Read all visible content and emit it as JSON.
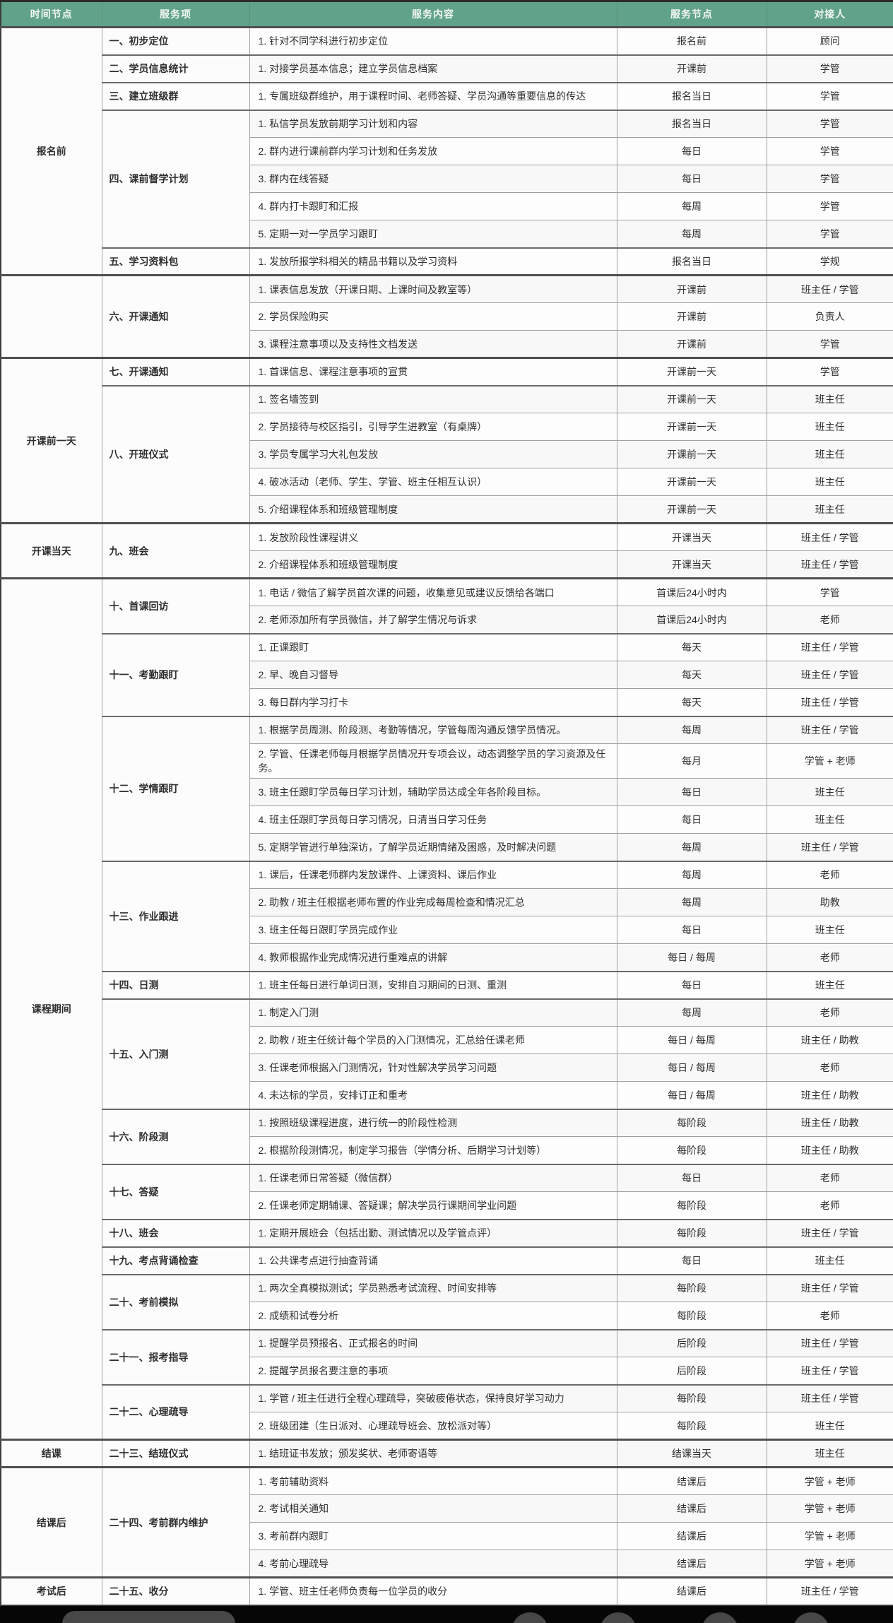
{
  "colors": {
    "header_bg": "#61a389",
    "header_text": "#f4f8f4",
    "bottom_bar_bg": "#060606",
    "bottom_bar_shape": "#474747"
  },
  "header": {
    "columns": [
      "时间节点",
      "服务项",
      "服务内容",
      "服务节点",
      "对接人"
    ]
  },
  "sections": [
    {
      "time_node": "报名前",
      "items": [
        {
          "label": "一、初步定位",
          "rows": [
            [
              "1. 针对不同学科进行初步定位",
              "报名前",
              "顾问"
            ]
          ]
        },
        {
          "label": "二、学员信息统计",
          "rows": [
            [
              "1. 对接学员基本信息；建立学员信息档案",
              "开课前",
              "学管"
            ]
          ]
        },
        {
          "label": "三、建立班级群",
          "rows": [
            [
              "1. 专属班级群维护，用于课程时间、老师答疑、学员沟通等重要信息的传达",
              "报名当日",
              "学管"
            ]
          ]
        },
        {
          "label": "四、课前督学计划",
          "rows": [
            [
              "1. 私信学员发放前期学习计划和内容",
              "报名当日",
              "学管"
            ],
            [
              "2. 群内进行课前群内学习计划和任务发放",
              "每日",
              "学管"
            ],
            [
              "3. 群内在线答疑",
              "每日",
              "学管"
            ],
            [
              "4. 群内打卡跟盯和汇报",
              "每周",
              "学管"
            ],
            [
              "5. 定期一对一学员学习跟盯",
              "每周",
              "学管"
            ]
          ]
        },
        {
          "label": "五、学习资料包",
          "rows": [
            [
              "1. 发放所报学科相关的精品书籍以及学习资料",
              "报名当日",
              "学规"
            ]
          ]
        }
      ]
    },
    {
      "time_node": "",
      "items": [
        {
          "label": "六、开课通知",
          "rows": [
            [
              "1. 课表信息发放（开课日期、上课时间及教室等）",
              "开课前",
              "班主任 / 学管"
            ],
            [
              "2. 学员保险购买",
              "开课前",
              "负责人"
            ],
            [
              "3. 课程注意事项以及支持性文档发送",
              "开课前",
              "学管"
            ]
          ]
        }
      ]
    },
    {
      "time_node": "开课前一天",
      "items": [
        {
          "label": "七、开课通知",
          "rows": [
            [
              "1. 首课信息、课程注意事项的宣贯",
              "开课前一天",
              "学管"
            ]
          ]
        },
        {
          "label": "八、开班仪式",
          "rows": [
            [
              "1. 签名墙签到",
              "开课前一天",
              "班主任"
            ],
            [
              "2. 学员接待与校区指引，引导学生进教室（有桌牌）",
              "开课前一天",
              "班主任"
            ],
            [
              "3. 学员专属学习大礼包发放",
              "开课前一天",
              "班主任"
            ],
            [
              "4. 破冰活动（老师、学生、学管、班主任相互认识）",
              "开课前一天",
              "班主任"
            ],
            [
              "5. 介绍课程体系和班级管理制度",
              "开课前一天",
              "班主任"
            ]
          ]
        }
      ]
    },
    {
      "time_node": "开课当天",
      "items": [
        {
          "label": "九、班会",
          "rows": [
            [
              "1. 发放阶段性课程讲义",
              "开课当天",
              "班主任 / 学管"
            ],
            [
              "2. 介绍课程体系和班级管理制度",
              "开课当天",
              "班主任 / 学管"
            ]
          ]
        }
      ]
    },
    {
      "time_node": "课程期间",
      "items": [
        {
          "label": "十、首课回访",
          "rows": [
            [
              "1. 电话 / 微信了解学员首次课的问题，收集意见或建议反馈给各端口",
              "首课后24小时内",
              "学管"
            ],
            [
              "2. 老师添加所有学员微信，并了解学生情况与诉求",
              "首课后24小时内",
              "老师"
            ]
          ]
        },
        {
          "label": "十一、考勤跟盯",
          "rows": [
            [
              "1. 正课跟盯",
              "每天",
              "班主任 / 学管"
            ],
            [
              "2. 早、晚自习督导",
              "每天",
              "班主任 / 学管"
            ],
            [
              "3. 每日群内学习打卡",
              "每天",
              "班主任 / 学管"
            ]
          ]
        },
        {
          "label": "十二、学情跟盯",
          "rows": [
            [
              "1. 根据学员周测、阶段测、考勤等情况，学管每周沟通反馈学员情况。",
              "每周",
              "班主任 / 学管"
            ],
            [
              "2. 学管、任课老师每月根据学员情况开专项会议，动态调整学员的学习资源及任务。",
              "每月",
              "学管 + 老师"
            ],
            [
              "3. 班主任跟盯学员每日学习计划，辅助学员达成全年各阶段目标。",
              "每日",
              "班主任"
            ],
            [
              "4. 班主任跟盯学员每日学习情况，日清当日学习任务",
              "每日",
              "班主任"
            ],
            [
              "5. 定期学管进行单独深访，了解学员近期情绪及困惑，及时解决问题",
              "每周",
              "班主任 / 学管"
            ]
          ]
        },
        {
          "label": "十三、作业跟进",
          "rows": [
            [
              "1. 课后，任课老师群内发放课件、上课资料、课后作业",
              "每周",
              "老师"
            ],
            [
              "2. 助教 / 班主任根据老师布置的作业完成每周检查和情况汇总",
              "每周",
              "助教"
            ],
            [
              "3. 班主任每日跟盯学员完成作业",
              "每日",
              "班主任"
            ],
            [
              "4. 教师根据作业完成情况进行重难点的讲解",
              "每日 / 每周",
              "老师"
            ]
          ]
        },
        {
          "label": "十四、日测",
          "rows": [
            [
              "1. 班主任每日进行单词日测，安排自习期间的日测、重测",
              "每日",
              "班主任"
            ]
          ]
        },
        {
          "label": "十五、入门测",
          "rows": [
            [
              "1. 制定入门测",
              "每周",
              "老师"
            ],
            [
              "2. 助教 / 班主任统计每个学员的入门测情况，汇总给任课老师",
              "每日 / 每周",
              "班主任 / 助教"
            ],
            [
              "3. 任课老师根据入门测情况，针对性解决学员学习问题",
              "每日 / 每周",
              "老师"
            ],
            [
              "4. 未达标的学员，安排订正和重考",
              "每日 / 每周",
              "班主任 / 助教"
            ]
          ]
        },
        {
          "label": "十六、阶段测",
          "rows": [
            [
              "1. 按照班级课程进度，进行统一的阶段性检测",
              "每阶段",
              "班主任 / 助教"
            ],
            [
              "2. 根据阶段测情况，制定学习报告（学情分析、后期学习计划等）",
              "每阶段",
              "班主任 / 助教"
            ]
          ]
        },
        {
          "label": "十七、答疑",
          "rows": [
            [
              "1. 任课老师日常答疑（微信群）",
              "每日",
              "老师"
            ],
            [
              "2. 任课老师定期辅课、答疑课；解决学员行课期间学业问题",
              "每阶段",
              "老师"
            ]
          ]
        },
        {
          "label": "十八、班会",
          "rows": [
            [
              "1. 定期开展班会（包括出勤、测试情况以及学管点评）",
              "每阶段",
              "班主任 / 学管"
            ]
          ]
        },
        {
          "label": "十九、考点背诵检查",
          "rows": [
            [
              "1. 公共课考点进行抽查背诵",
              "每日",
              "班主任"
            ]
          ]
        },
        {
          "label": "二十、考前模拟",
          "rows": [
            [
              "1. 两次全真模拟测试；学员熟悉考试流程、时间安排等",
              "每阶段",
              "班主任 / 学管"
            ],
            [
              "2. 成绩和试卷分析",
              "每阶段",
              "老师"
            ]
          ]
        },
        {
          "label": "二十一、报考指导",
          "rows": [
            [
              "1. 提醒学员预报名、正式报名的时间",
              "后阶段",
              "班主任 / 学管"
            ],
            [
              "2. 提醒学员报名要注意的事项",
              "后阶段",
              "班主任 / 学管"
            ]
          ]
        },
        {
          "label": "二十二、心理疏导",
          "rows": [
            [
              "1. 学管 / 班主任进行全程心理疏导，突破疲倦状态，保持良好学习动力",
              "每阶段",
              "班主任 / 学管"
            ],
            [
              "2. 班级团建（生日派对、心理疏导班会、放松派对等）",
              "每阶段",
              "班主任"
            ]
          ]
        }
      ]
    },
    {
      "time_node": "结课",
      "items": [
        {
          "label": "二十三、结班仪式",
          "rows": [
            [
              "1. 结班证书发放；颁发奖状、老师寄语等",
              "结课当天",
              "班主任"
            ]
          ]
        }
      ]
    },
    {
      "time_node": "结课后",
      "items": [
        {
          "label": "二十四、考前群内维护",
          "rows": [
            [
              "1. 考前辅助资料",
              "结课后",
              "学管 + 老师"
            ],
            [
              "2. 考试相关通知",
              "结课后",
              "学管 + 老师"
            ],
            [
              "3. 考前群内跟盯",
              "结课后",
              "学管 + 老师"
            ],
            [
              "4. 考前心理疏导",
              "结课后",
              "学管 + 老师"
            ]
          ]
        }
      ]
    },
    {
      "time_node": "考试后",
      "items": [
        {
          "label": "二十五、收分",
          "rows": [
            [
              "1. 学管、班主任老师负责每一位学员的收分",
              "结课后",
              "班主任 / 学管"
            ]
          ]
        }
      ]
    }
  ]
}
